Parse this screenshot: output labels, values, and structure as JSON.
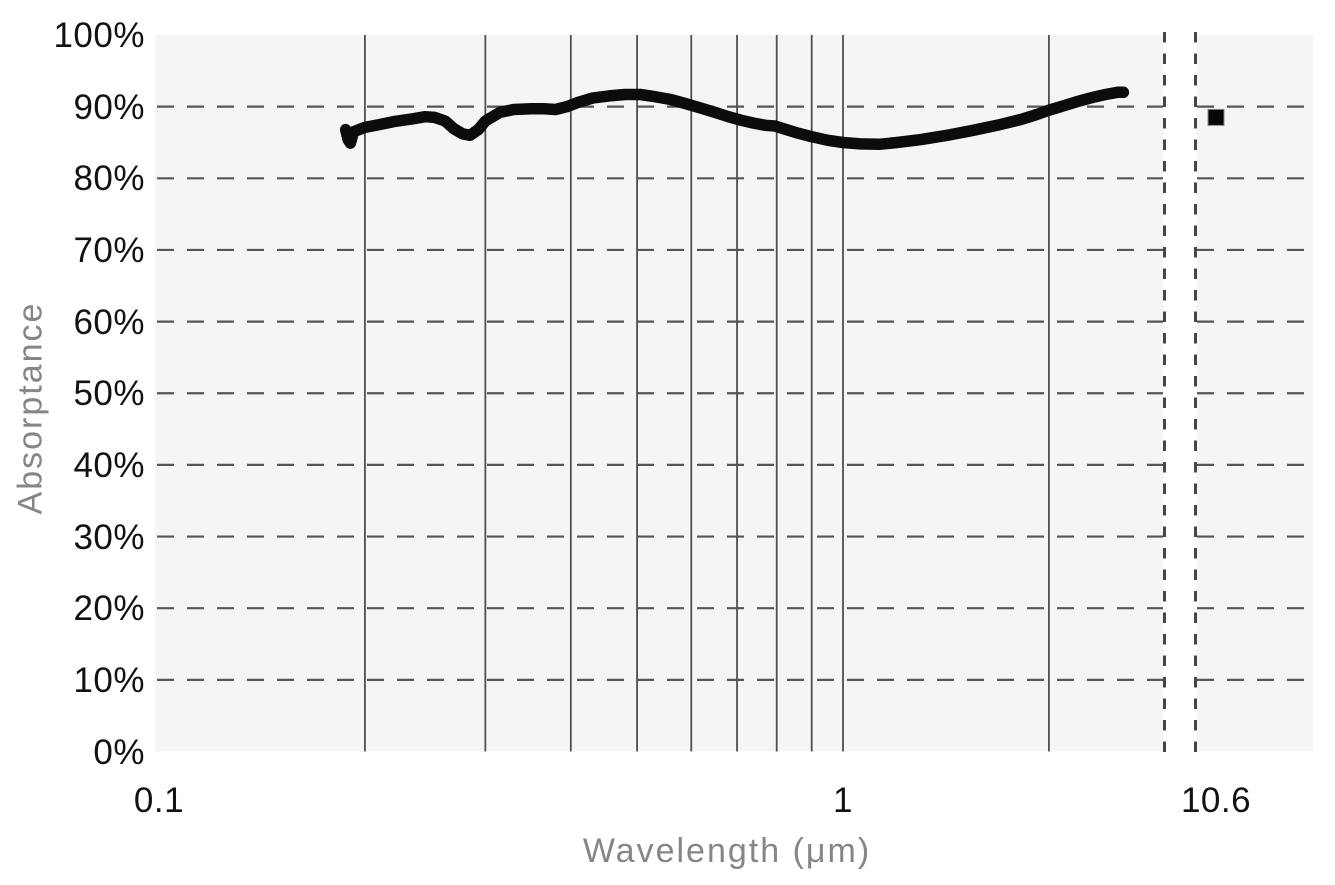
{
  "chart_data": {
    "type": "line",
    "title": "",
    "xlabel": "Wavelength (μm)",
    "ylabel": "Absorptance",
    "x_scale": "log",
    "x_axis_break": {
      "between": [
        3.0,
        10.0
      ],
      "style": "dashed-vertical-lines"
    },
    "xlim_main_panel": [
      0.1,
      3.0
    ],
    "right_panel_value": 10.6,
    "ylim": [
      0,
      100
    ],
    "y_ticks": [
      {
        "value": 0,
        "label": "0%"
      },
      {
        "value": 10,
        "label": "10%"
      },
      {
        "value": 20,
        "label": "20%"
      },
      {
        "value": 30,
        "label": "30%"
      },
      {
        "value": 40,
        "label": "40%"
      },
      {
        "value": 50,
        "label": "50%"
      },
      {
        "value": 60,
        "label": "60%"
      },
      {
        "value": 70,
        "label": "70%"
      },
      {
        "value": 80,
        "label": "80%"
      },
      {
        "value": 90,
        "label": "90%"
      },
      {
        "value": 100,
        "label": "100%"
      }
    ],
    "x_ticks": [
      {
        "value": 0.1,
        "label": "0.1"
      },
      {
        "value": 1,
        "label": "1"
      },
      {
        "value": 10.6,
        "label": "10.6"
      }
    ],
    "y_gridlines_dashed": [
      10,
      20,
      30,
      40,
      50,
      60,
      70,
      80,
      90
    ],
    "x_gridlines_solid": [
      0.2,
      0.3,
      0.4,
      0.5,
      0.6,
      0.7,
      0.8,
      0.9,
      1.0,
      2.0
    ],
    "grid": true,
    "legend": "none",
    "series": [
      {
        "name": "measured-absorptance-spectrum",
        "type": "line",
        "points": [
          [
            0.1875,
            86.8
          ],
          [
            0.189,
            85.4
          ],
          [
            0.1905,
            84.9
          ],
          [
            0.1925,
            86.5
          ],
          [
            0.2,
            87.1
          ],
          [
            0.21,
            87.5
          ],
          [
            0.22,
            87.9
          ],
          [
            0.235,
            88.3
          ],
          [
            0.245,
            88.6
          ],
          [
            0.253,
            88.5
          ],
          [
            0.262,
            88.0
          ],
          [
            0.27,
            86.9
          ],
          [
            0.278,
            86.2
          ],
          [
            0.285,
            86.0
          ],
          [
            0.293,
            86.8
          ],
          [
            0.3,
            88.0
          ],
          [
            0.315,
            89.2
          ],
          [
            0.33,
            89.6
          ],
          [
            0.35,
            89.7
          ],
          [
            0.365,
            89.7
          ],
          [
            0.38,
            89.6
          ],
          [
            0.395,
            90.0
          ],
          [
            0.41,
            90.6
          ],
          [
            0.43,
            91.2
          ],
          [
            0.455,
            91.5
          ],
          [
            0.48,
            91.7
          ],
          [
            0.505,
            91.7
          ],
          [
            0.53,
            91.4
          ],
          [
            0.56,
            91.0
          ],
          [
            0.59,
            90.4
          ],
          [
            0.62,
            89.8
          ],
          [
            0.65,
            89.2
          ],
          [
            0.68,
            88.6
          ],
          [
            0.71,
            88.1
          ],
          [
            0.74,
            87.7
          ],
          [
            0.77,
            87.4
          ],
          [
            0.795,
            87.3
          ],
          [
            0.82,
            86.9
          ],
          [
            0.86,
            86.3
          ],
          [
            0.9,
            85.8
          ],
          [
            0.95,
            85.3
          ],
          [
            1.0,
            85.0
          ],
          [
            1.06,
            84.8
          ],
          [
            1.13,
            84.75
          ],
          [
            1.2,
            85.0
          ],
          [
            1.3,
            85.4
          ],
          [
            1.42,
            86.0
          ],
          [
            1.55,
            86.7
          ],
          [
            1.68,
            87.4
          ],
          [
            1.82,
            88.2
          ],
          [
            1.92,
            88.9
          ],
          [
            2.0,
            89.5
          ],
          [
            2.1,
            90.1
          ],
          [
            2.2,
            90.7
          ],
          [
            2.32,
            91.3
          ],
          [
            2.42,
            91.7
          ],
          [
            2.52,
            92.0
          ],
          [
            2.57,
            92.0
          ]
        ]
      },
      {
        "name": "laser-wavelength-point",
        "type": "scatter",
        "marker": "square",
        "points": [
          [
            10.6,
            88.5
          ]
        ]
      }
    ],
    "colors": {
      "curve": "#0c0c0c",
      "marker_fill": "#060606",
      "marker_edge": "#8a8a8a",
      "plot_bg": "#f5f5f5",
      "page_bg": "#ffffff",
      "grid_solid": "#4f4f4f",
      "grid_dashed": "#565656",
      "break_dash": "#464646",
      "tick_text": "#121212",
      "axis_title_text": "#868686"
    }
  }
}
